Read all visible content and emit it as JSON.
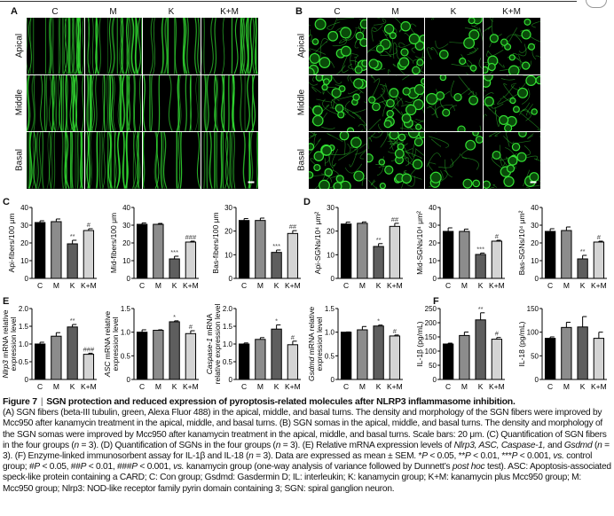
{
  "figure": {
    "panel_letters": [
      "A",
      "B",
      "C",
      "D",
      "E",
      "F"
    ],
    "groups": [
      "C",
      "M",
      "K",
      "K+M"
    ],
    "turns": [
      "Apical",
      "Middle",
      "Basal"
    ],
    "colors": {
      "C": "#000000",
      "M": "#8c8c8c",
      "K": "#5e5e5e",
      "K+M": "#d4d4d4",
      "stain": "#33e033"
    }
  },
  "chart_data": [
    {
      "type": "bar",
      "panel": "C",
      "ylabel": [
        "Api-fibers/100 μm"
      ],
      "ylim": [
        0,
        40
      ],
      "ticks": [
        0,
        10,
        20,
        30,
        40
      ],
      "categories": [
        "C",
        "M",
        "K",
        "K+M"
      ],
      "values": [
        31.5,
        32,
        19.5,
        27
      ],
      "errors": [
        1,
        1.5,
        2,
        1
      ],
      "significance": [
        "",
        "",
        "**",
        "#"
      ]
    },
    {
      "type": "bar",
      "panel": "C",
      "ylabel": [
        "Mid-fibers/100 μm"
      ],
      "ylim": [
        0,
        40
      ],
      "ticks": [
        0,
        10,
        20,
        30,
        40
      ],
      "categories": [
        "C",
        "M",
        "K",
        "K+M"
      ],
      "values": [
        30.5,
        30.5,
        11,
        20.5
      ],
      "errors": [
        0.8,
        0.5,
        1.5,
        0.5
      ],
      "significance": [
        "",
        "",
        "***",
        "###"
      ]
    },
    {
      "type": "bar",
      "panel": "C",
      "ylabel": [
        "Bas-fibers/100 μm"
      ],
      "ylim": [
        0,
        30
      ],
      "ticks": [
        0,
        10,
        20,
        30
      ],
      "categories": [
        "C",
        "M",
        "K",
        "K+M"
      ],
      "values": [
        24.5,
        24.5,
        11,
        19
      ],
      "errors": [
        0.8,
        1,
        1,
        1.2
      ],
      "significance": [
        "",
        "",
        "***",
        "##"
      ]
    },
    {
      "type": "bar",
      "panel": "D",
      "ylabel": [
        "Api-SGNs/10⁴ μm²"
      ],
      "ylim": [
        0,
        30
      ],
      "ticks": [
        0,
        10,
        20,
        30
      ],
      "categories": [
        "C",
        "M",
        "K",
        "K+M"
      ],
      "values": [
        23,
        23.3,
        13.5,
        22
      ],
      "errors": [
        0.8,
        0.6,
        1.2,
        1.3
      ],
      "significance": [
        "",
        "",
        "**",
        "##"
      ]
    },
    {
      "type": "bar",
      "panel": "D",
      "ylabel": [
        "Mid-SGNs/10⁴ μm²"
      ],
      "ylim": [
        0,
        40
      ],
      "ticks": [
        0,
        10,
        20,
        30,
        40
      ],
      "categories": [
        "C",
        "M",
        "K",
        "K+M"
      ],
      "values": [
        26.5,
        26.5,
        13.5,
        21
      ],
      "errors": [
        2,
        1.3,
        0.8,
        0.5
      ],
      "significance": [
        "",
        "",
        "***",
        "#"
      ]
    },
    {
      "type": "bar",
      "panel": "D",
      "ylabel": [
        "Bas-SGNs/10⁴ μm²"
      ],
      "ylim": [
        0,
        40
      ],
      "ticks": [
        0,
        10,
        20,
        30,
        40
      ],
      "categories": [
        "C",
        "M",
        "K",
        "K+M"
      ],
      "values": [
        26.5,
        27,
        11,
        20.5
      ],
      "errors": [
        1.5,
        2,
        2,
        0.5
      ],
      "significance": [
        "",
        "",
        "**",
        "#"
      ]
    },
    {
      "type": "bar",
      "panel": "E",
      "ylabel": [
        "Nlrp3 mRNA relative",
        "expression level"
      ],
      "italic": "Nlrp3",
      "ylim": [
        0,
        2
      ],
      "ticks": [
        "0",
        "0.5",
        "1.0",
        "1.5",
        "2.0"
      ],
      "categories": [
        "C",
        "M",
        "K",
        "K+M"
      ],
      "values": [
        1.0,
        1.22,
        1.48,
        0.71
      ],
      "errors": [
        0.05,
        0.1,
        0.07,
        0.03
      ],
      "significance": [
        "",
        "",
        "**",
        "###"
      ]
    },
    {
      "type": "bar",
      "panel": "E",
      "ylabel": [
        "ASC mRNA relative",
        "expression level"
      ],
      "italic": "ASC",
      "ylim": [
        0,
        1.5
      ],
      "ticks": [
        "0",
        "0.5",
        "1.0",
        "1.5"
      ],
      "categories": [
        "C",
        "M",
        "K",
        "K+M"
      ],
      "values": [
        1.0,
        1.04,
        1.22,
        0.97
      ],
      "errors": [
        0.05,
        0.01,
        0.02,
        0.06
      ],
      "significance": [
        "",
        "",
        "*",
        "#"
      ]
    },
    {
      "type": "bar",
      "panel": "E",
      "ylabel": [
        "Caspase-1 mRNA",
        "relative expression level"
      ],
      "italic": "Caspase-1",
      "ylim": [
        0,
        2
      ],
      "ticks": [
        "0",
        "0.5",
        "1.0",
        "1.5",
        "2.0"
      ],
      "categories": [
        "C",
        "M",
        "K",
        "K+M"
      ],
      "values": [
        1.0,
        1.13,
        1.42,
        0.98
      ],
      "errors": [
        0.03,
        0.05,
        0.12,
        0.1
      ],
      "significance": [
        "",
        "",
        "*",
        "#"
      ]
    },
    {
      "type": "bar",
      "panel": "E",
      "ylabel": [
        "Gsdmd mRNA relative",
        "expression level"
      ],
      "italic": "Gsdmd",
      "ylim": [
        0,
        1.5
      ],
      "ticks": [
        "0",
        "0.5",
        "1.0",
        "1.5"
      ],
      "categories": [
        "C",
        "M",
        "K",
        "K+M"
      ],
      "values": [
        1.0,
        1.05,
        1.13,
        0.92
      ],
      "errors": [
        0.005,
        0.07,
        0.02,
        0.02
      ],
      "significance": [
        "",
        "",
        "*",
        "#"
      ]
    },
    {
      "type": "bar",
      "panel": "F",
      "ylabel": [
        "IL-1β (pg/mL)"
      ],
      "ylim": [
        0,
        250
      ],
      "ticks": [
        0,
        50,
        100,
        150,
        200,
        250
      ],
      "categories": [
        "C",
        "M",
        "K",
        "K+M"
      ],
      "values": [
        125,
        155,
        210,
        142
      ],
      "errors": [
        3,
        12,
        25,
        6
      ],
      "significance": [
        "",
        "",
        "**",
        "#"
      ]
    },
    {
      "type": "bar",
      "panel": "F",
      "ylabel": [
        "IL-18 (pg/mL)"
      ],
      "ylim": [
        0,
        150
      ],
      "ticks": [
        0,
        50,
        100,
        150
      ],
      "categories": [
        "C",
        "M",
        "K",
        "K+M"
      ],
      "values": [
        87,
        110,
        111,
        87
      ],
      "errors": [
        3,
        11,
        22,
        13
      ],
      "significance": [
        "",
        "",
        "",
        ""
      ]
    }
  ],
  "caption": {
    "label": "Figure 7",
    "title": "SGN protection and reduced expression of pyroptosis-related molecules after NLRP3 inflammasome inhibition.",
    "segments": [
      {
        "t": "(A) SGN fibers (beta-III tubulin, green, Alexa Fluor 488) in the apical, middle, and basal turns. The density and morphology of the SGN fibers were improved by Mcc950 after kanamycin treatment in the apical, middle, and basal turns. (B) SGN somas in the apical, middle, and basal turns. The density and morphology of the SGN somas were improved by Mcc950 after kanamycin treatment in the apical, middle, and basal turns. Scale bars: 20 μm. (C) Quantification of SGN fibers in the four groups ("
      },
      {
        "t": "n",
        "i": true
      },
      {
        "t": " = 3). (D) Quantification of SGNs in the four groups ("
      },
      {
        "t": "n",
        "i": true
      },
      {
        "t": " = 3). (E) Relative mRNA expression levels of "
      },
      {
        "t": "Nlrp3, ASC, Caspase-1,",
        "i": true
      },
      {
        "t": " and "
      },
      {
        "t": "Gsdmd",
        "i": true
      },
      {
        "t": " ("
      },
      {
        "t": "n",
        "i": true
      },
      {
        "t": " = 3). (F) Enzyme-linked immunosorbent assay for IL-1β and IL-18 ("
      },
      {
        "t": "n",
        "i": true
      },
      {
        "t": " = 3). Data are expressed as mean ± SEM. *"
      },
      {
        "t": "P",
        "i": true
      },
      {
        "t": " < 0.05, **"
      },
      {
        "t": "P",
        "i": true
      },
      {
        "t": " < 0.01, ***"
      },
      {
        "t": "P",
        "i": true
      },
      {
        "t": " < 0.001, "
      },
      {
        "t": "vs.",
        "i": true
      },
      {
        "t": " control group; #"
      },
      {
        "t": "P",
        "i": true
      },
      {
        "t": " < 0.05, ##"
      },
      {
        "t": "P",
        "i": true
      },
      {
        "t": " < 0.01, ###"
      },
      {
        "t": "P",
        "i": true
      },
      {
        "t": " < 0.001, "
      },
      {
        "t": "vs.",
        "i": true
      },
      {
        "t": " kanamycin group (one-way analysis of variance followed by Dunnett’s "
      },
      {
        "t": "post hoc",
        "i": true
      },
      {
        "t": " test). ASC: Apoptosis-associated speck-like protein containing a CARD; C: Con group; Gsdmd: Gasdermin D; IL: interleukin; K: kanamycin group; K+M: kanamycin plus Mcc950 group; M: Mcc950 group; Nlrp3: NOD-like receptor family pyrin domain containing 3; SGN: spiral ganglion neuron."
      }
    ]
  }
}
